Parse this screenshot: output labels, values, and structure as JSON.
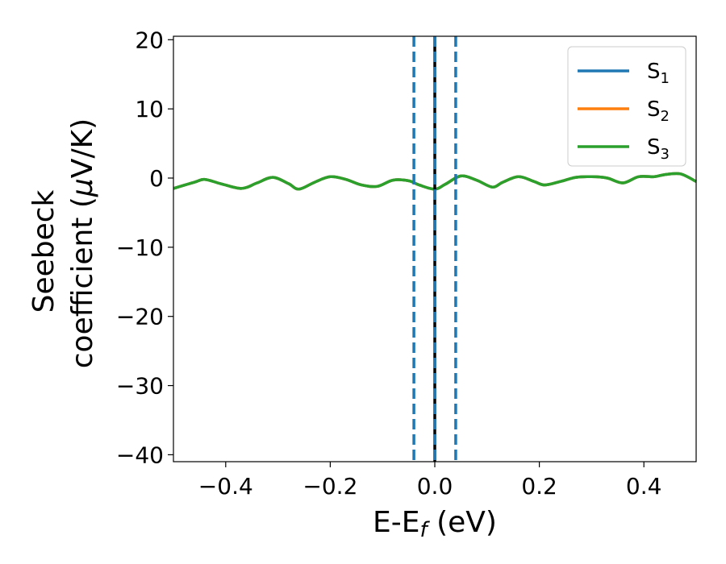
{
  "chart_data": {
    "type": "line",
    "title": "",
    "xlabel": {
      "main": "E-E",
      "sub": "f",
      "suffix": " (eV)"
    },
    "ylabel": {
      "line1": "Seebeck",
      "line2_prefix": "coefficient  (",
      "mu": "μ",
      "line2_suffix": "V/K)"
    },
    "xlim": [
      -0.5,
      0.5
    ],
    "ylim": [
      -41,
      20.5
    ],
    "xticks": [
      -0.4,
      -0.2,
      0.0,
      0.2,
      0.4
    ],
    "xtick_labels": [
      "−0.4",
      "−0.2",
      "0.0",
      "0.2",
      "0.4"
    ],
    "yticks": [
      20,
      10,
      0,
      -10,
      -20,
      -30,
      -40
    ],
    "ytick_labels": [
      "20",
      "10",
      "0",
      "−10",
      "−20",
      "−30",
      "−40"
    ],
    "grid": false,
    "legend_position": "top-right",
    "series": [
      {
        "name": {
          "main": "S",
          "sub": "1"
        },
        "color": "#1f77b4",
        "x": [
          -0.5,
          -0.46,
          -0.44,
          -0.41,
          -0.37,
          -0.34,
          -0.31,
          -0.28,
          -0.26,
          -0.23,
          -0.2,
          -0.17,
          -0.14,
          -0.11,
          -0.08,
          -0.05,
          -0.03,
          0.0,
          0.02,
          0.05,
          0.08,
          0.11,
          0.13,
          0.16,
          0.19,
          0.21,
          0.24,
          0.27,
          0.3,
          0.33,
          0.36,
          0.39,
          0.42,
          0.44,
          0.47,
          0.5
        ],
        "y": [
          -1.5,
          -0.6,
          -0.2,
          -0.8,
          -1.5,
          -0.7,
          0.1,
          -0.8,
          -1.6,
          -0.6,
          0.2,
          -0.2,
          -1.0,
          -1.2,
          -0.3,
          -0.4,
          -1.0,
          -1.6,
          -0.9,
          0.3,
          -0.3,
          -1.3,
          -0.6,
          0.2,
          -0.5,
          -1.0,
          -0.5,
          0.1,
          0.2,
          0.0,
          -0.7,
          0.2,
          0.2,
          0.5,
          0.6,
          -0.5
        ]
      },
      {
        "name": {
          "main": "S",
          "sub": "2"
        },
        "color": "#ff7f0e",
        "x": [
          -0.5,
          -0.46,
          -0.44,
          -0.41,
          -0.37,
          -0.34,
          -0.31,
          -0.28,
          -0.26,
          -0.23,
          -0.2,
          -0.17,
          -0.14,
          -0.11,
          -0.08,
          -0.05,
          -0.03,
          0.0,
          0.02,
          0.05,
          0.08,
          0.11,
          0.13,
          0.16,
          0.19,
          0.21,
          0.24,
          0.27,
          0.3,
          0.33,
          0.36,
          0.39,
          0.42,
          0.44,
          0.47,
          0.5
        ],
        "y": [
          -1.5,
          -0.6,
          -0.2,
          -0.8,
          -1.5,
          -0.7,
          0.1,
          -0.8,
          -1.6,
          -0.6,
          0.2,
          -0.2,
          -1.0,
          -1.2,
          -0.3,
          -0.4,
          -1.0,
          -1.6,
          -0.9,
          0.3,
          -0.3,
          -1.3,
          -0.6,
          0.2,
          -0.5,
          -1.0,
          -0.5,
          0.1,
          0.2,
          0.0,
          -0.7,
          0.2,
          0.2,
          0.5,
          0.6,
          -0.5
        ]
      },
      {
        "name": {
          "main": "S",
          "sub": "3"
        },
        "color": "#2ca02c",
        "x": [
          -0.5,
          -0.46,
          -0.44,
          -0.41,
          -0.37,
          -0.34,
          -0.31,
          -0.28,
          -0.26,
          -0.23,
          -0.2,
          -0.17,
          -0.14,
          -0.11,
          -0.08,
          -0.05,
          -0.03,
          0.0,
          0.02,
          0.05,
          0.08,
          0.11,
          0.13,
          0.16,
          0.19,
          0.21,
          0.24,
          0.27,
          0.3,
          0.33,
          0.36,
          0.39,
          0.42,
          0.44,
          0.47,
          0.5
        ],
        "y": [
          -1.5,
          -0.6,
          -0.2,
          -0.8,
          -1.5,
          -0.7,
          0.1,
          -0.8,
          -1.6,
          -0.6,
          0.2,
          -0.2,
          -1.0,
          -1.2,
          -0.3,
          -0.4,
          -1.0,
          -1.6,
          -0.9,
          0.3,
          -0.3,
          -1.3,
          -0.6,
          0.2,
          -0.5,
          -1.0,
          -0.5,
          0.1,
          0.2,
          0.0,
          -0.7,
          0.2,
          0.2,
          0.5,
          0.6,
          -0.5
        ]
      }
    ],
    "vlines": [
      {
        "x": 0.0,
        "color": "#000000",
        "style": "solid"
      },
      {
        "x": -0.04,
        "color": "#1f77b4",
        "style": "dashed"
      },
      {
        "x": 0.0,
        "color": "#1f77b4",
        "style": "dashed"
      },
      {
        "x": 0.04,
        "color": "#1f77b4",
        "style": "dashed"
      }
    ]
  }
}
